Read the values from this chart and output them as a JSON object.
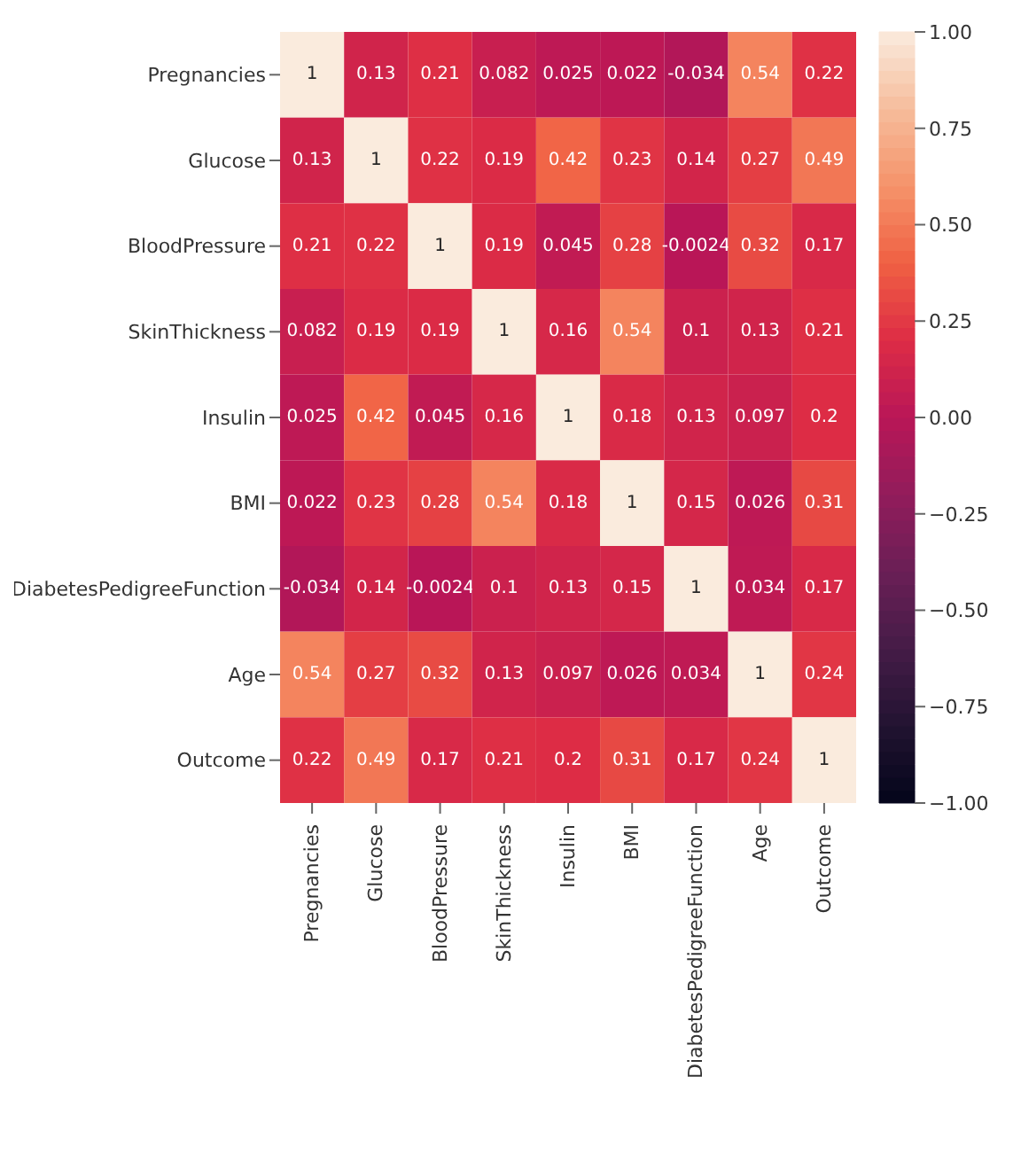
{
  "chart_data": {
    "type": "heatmap",
    "categories": [
      "Pregnancies",
      "Glucose",
      "BloodPressure",
      "SkinThickness",
      "Insulin",
      "BMI",
      "DiabetesPedigreeFunction",
      "Age",
      "Outcome"
    ],
    "y_categories": [
      "Pregnancies",
      "Glucose",
      "BloodPressure",
      "SkinThickness",
      "Insulin",
      "BMI",
      "DiabetesPedigreeFunction",
      "Age",
      "Outcome"
    ],
    "cells": [
      [
        1,
        0.13,
        0.21,
        0.082,
        0.025,
        0.022,
        -0.034,
        0.54,
        0.22
      ],
      [
        0.13,
        1,
        0.22,
        0.19,
        0.42,
        0.23,
        0.14,
        0.27,
        0.49
      ],
      [
        0.21,
        0.22,
        1,
        0.19,
        0.045,
        0.28,
        -0.0024,
        0.32,
        0.17
      ],
      [
        0.082,
        0.19,
        0.19,
        1,
        0.16,
        0.54,
        0.1,
        0.13,
        0.21
      ],
      [
        0.025,
        0.42,
        0.045,
        0.16,
        1,
        0.18,
        0.13,
        0.097,
        0.2
      ],
      [
        0.022,
        0.23,
        0.28,
        0.54,
        0.18,
        1,
        0.15,
        0.026,
        0.31
      ],
      [
        -0.034,
        0.14,
        -0.0024,
        0.1,
        0.13,
        0.15,
        1,
        0.034,
        0.17
      ],
      [
        0.54,
        0.27,
        0.32,
        0.13,
        0.097,
        0.026,
        0.034,
        1,
        0.24
      ],
      [
        0.22,
        0.49,
        0.17,
        0.21,
        0.2,
        0.31,
        0.17,
        0.24,
        1
      ]
    ],
    "clim": [
      -1,
      1
    ],
    "cticks": [
      {
        "value": -1,
        "label": "−1.00"
      },
      {
        "value": -0.75,
        "label": "−0.75"
      },
      {
        "value": -0.5,
        "label": "−0.50"
      },
      {
        "value": -0.25,
        "label": "−0.25"
      },
      {
        "value": 0,
        "label": "0.00"
      },
      {
        "value": 0.25,
        "label": "0.25"
      },
      {
        "value": 0.5,
        "label": "0.50"
      },
      {
        "value": 0.75,
        "label": "0.75"
      },
      {
        "value": 1,
        "label": "1.00"
      }
    ],
    "data_labels": true
  }
}
